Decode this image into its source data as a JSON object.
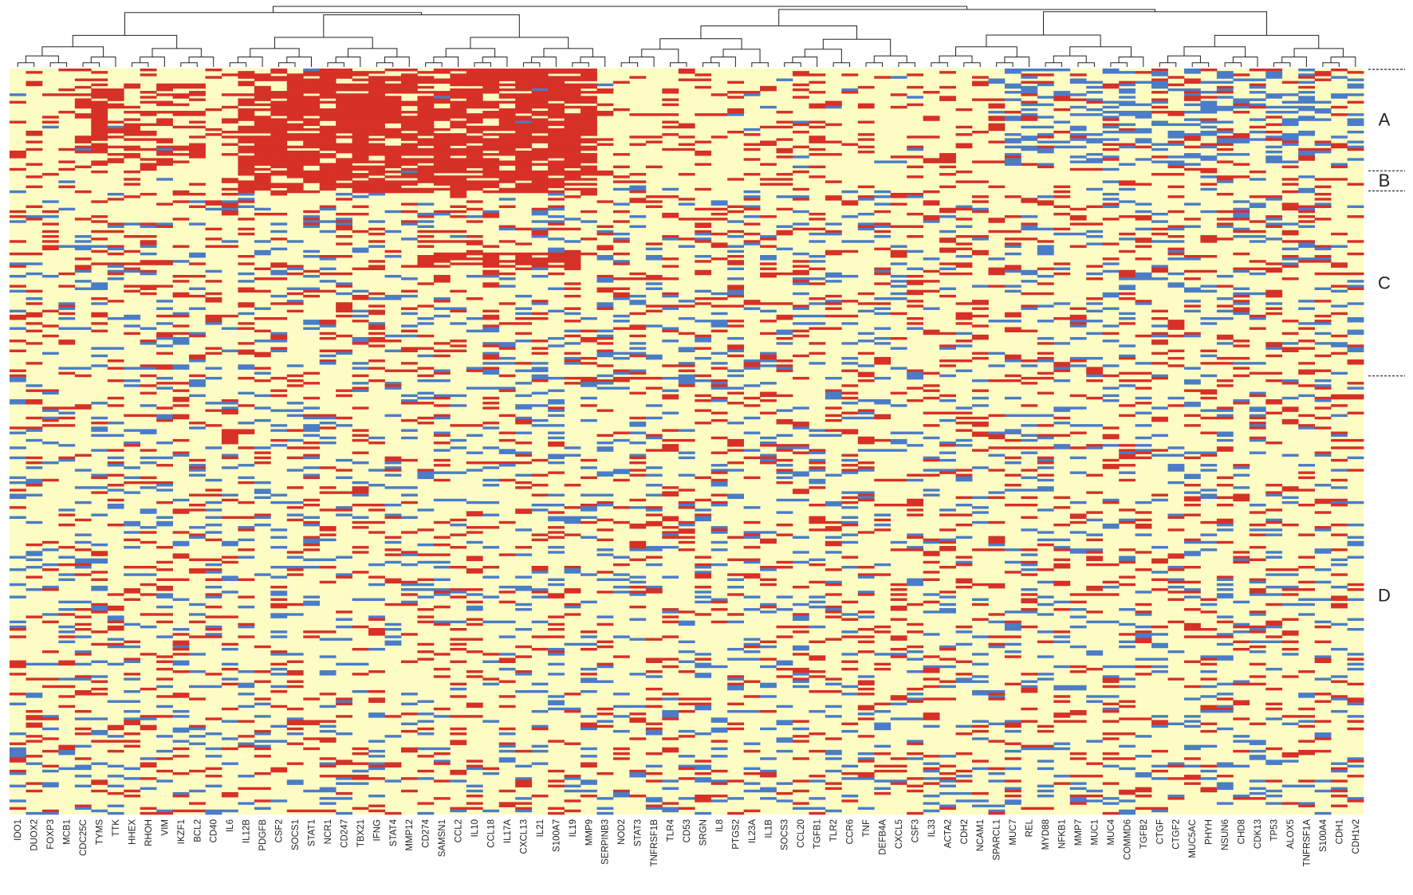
{
  "chart_data": {
    "type": "heatmap",
    "title": "",
    "xlabel": "",
    "ylabel": "",
    "legend": "none",
    "grid": false,
    "colors": {
      "high": "#d73027",
      "low": "#4a7cc7",
      "neutral": "#fdfdc3"
    },
    "columns": [
      "IDO1",
      "DUOX2",
      "FOXP3",
      "MCB1",
      "CDC25C",
      "TYMS",
      "TTK",
      "HHEX",
      "RHOH",
      "VIM",
      "IKZF1",
      "BCL2",
      "CD40",
      "IL6",
      "IL12B",
      "PDGFB",
      "CSF2",
      "SOCS1",
      "STAT1",
      "NCR1",
      "CD247",
      "TBX21",
      "IFNG",
      "STAT4",
      "MMP12",
      "CD274",
      "SAMSN1",
      "CCL2",
      "IL10",
      "CCL18",
      "IL17A",
      "CXCL13",
      "IL21",
      "S100A7",
      "IL19",
      "MMP9",
      "SERPINB3",
      "NOD2",
      "STAT3",
      "TNFRSF1B",
      "TLR4",
      "CD53",
      "SRGN",
      "IL8",
      "PTGS2",
      "IL23A",
      "IL1B",
      "SOCS3",
      "CCL20",
      "TGFB1",
      "TLR2",
      "CCR6",
      "TNF",
      "DEFB4A",
      "CXCL5",
      "CSF3",
      "IL33",
      "ACTA2",
      "CDH2",
      "NCAM1",
      "SPARCL1",
      "MUC7",
      "REL",
      "MYD88",
      "NFKB1",
      "MMP7",
      "MUC1",
      "MUC4",
      "COMMD6",
      "TGFB2",
      "CTGF",
      "CTGF2",
      "MUC5AC",
      "PHYH",
      "NSUN6",
      "CHD8",
      "CDK13",
      "TP53",
      "ALOX5",
      "TNFRSF1A",
      "S100A4",
      "CDH1",
      "CDH1v2"
    ],
    "row_clusters": [
      {
        "label": "A",
        "start": 0,
        "end": 0.136
      },
      {
        "label": "B",
        "start": 0.136,
        "end": 0.163
      },
      {
        "label": "C",
        "start": 0.163,
        "end": 0.411
      },
      {
        "label": "D",
        "start": 0.411,
        "end": 1.0
      }
    ],
    "high_blocks": [
      {
        "rows": [
          0,
          0.165
        ],
        "cols": [
          "IL12B",
          "PDGFB",
          "CSF2",
          "SOCS1",
          "STAT1",
          "NCR1",
          "CD247",
          "TBX21",
          "IFNG",
          "STAT4",
          "MMP12",
          "CD274",
          "SAMSN1",
          "CCL2",
          "IL10",
          "CCL18",
          "IL17A",
          "CXCL13",
          "IL21",
          "S100A7",
          "IL19",
          "MMP9"
        ],
        "density": 0.8
      },
      {
        "rows": [
          0.02,
          0.13
        ],
        "cols": [
          "CDC25C",
          "TYMS",
          "TTK",
          "HHEX",
          "RHOH",
          "VIM",
          "IKZF1",
          "BCL2"
        ],
        "density": 0.48
      },
      {
        "rows": [
          0.245,
          0.265
        ],
        "cols": [
          "CD274",
          "SAMSN1",
          "CCL2",
          "IL10",
          "CCL18",
          "IL17A",
          "CXCL13",
          "IL21",
          "S100A7",
          "IL19"
        ],
        "density": 0.85
      }
    ],
    "low_blocks": [
      {
        "rows": [
          0,
          0.13
        ],
        "cols": [
          "MUC7",
          "REL",
          "MYD88",
          "NFKB1",
          "MMP7",
          "MUC1",
          "MUC4",
          "COMMD6",
          "TGFB2",
          "CTGF",
          "CTGF2",
          "MUC5AC",
          "PHYH",
          "NSUN6",
          "CHD8",
          "CDK13",
          "TP53",
          "ALOX5",
          "TNFRSF1A",
          "S100A4",
          "CDH1",
          "CDH1v2"
        ],
        "density": 0.28
      }
    ]
  }
}
